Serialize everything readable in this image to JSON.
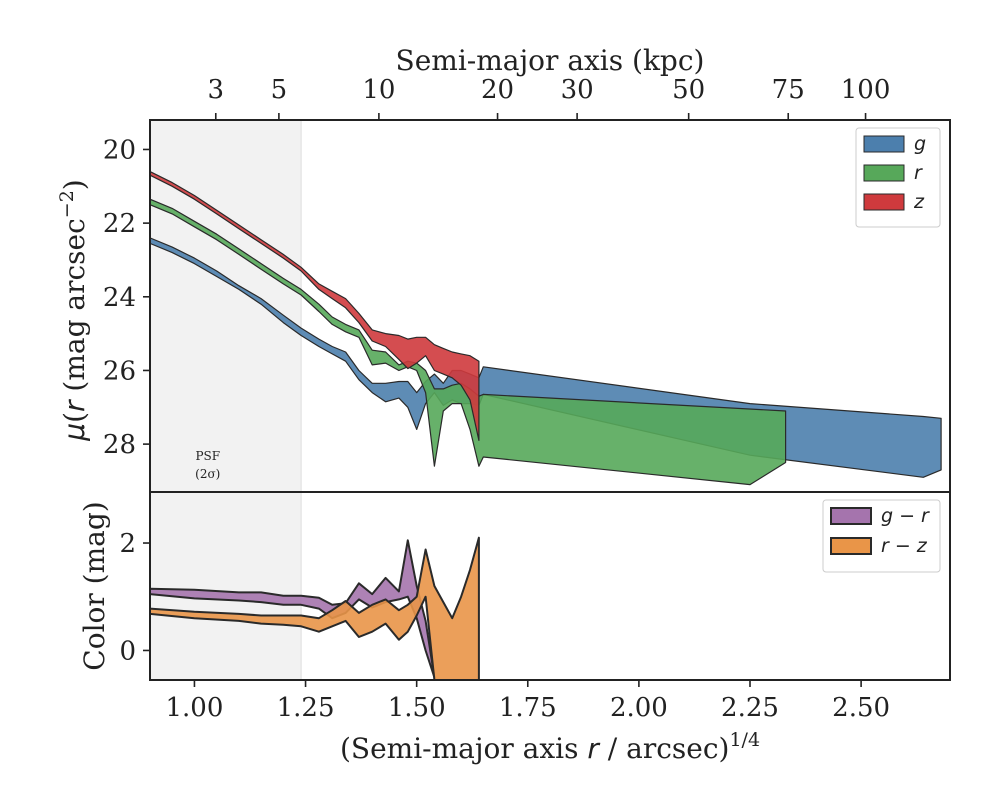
{
  "colors": {
    "g": "#4c7fad",
    "r": "#57a85a",
    "z": "#cf3a3d",
    "g_r": "#a574ad",
    "r_z": "#e99548",
    "psf_shade": "#f2f2f2",
    "axes": "#222222"
  },
  "chart_data": [
    {
      "type": "area",
      "panel": "profile",
      "xlabel_top": "Semi-major axis (kpc)",
      "top_ticks": [
        {
          "label": "3",
          "x": 1.048
        },
        {
          "label": "5",
          "x": 1.19
        },
        {
          "label": "10",
          "x": 1.415
        },
        {
          "label": "20",
          "x": 1.682
        },
        {
          "label": "30",
          "x": 1.861
        },
        {
          "label": "50",
          "x": 2.112
        },
        {
          "label": "75",
          "x": 2.336
        },
        {
          "label": "100",
          "x": 2.51
        }
      ],
      "ylabel": "μ(r) (mag arcsec⁻²)",
      "ylabel_parts": {
        "mu": "μ",
        "r": "r",
        "rest": " (mag arcsec",
        "sup": "−2",
        "close": ")"
      },
      "xlim": [
        0.9,
        2.7
      ],
      "ylim": [
        29.3,
        19.2
      ],
      "y_inverted": true,
      "yticks": [
        "20",
        "22",
        "24",
        "26",
        "28"
      ],
      "ytick_values": [
        20,
        22,
        24,
        26,
        28
      ],
      "psf_region": [
        0.9,
        1.24
      ],
      "psf_label": {
        "line1": "PSF",
        "line2": "(2σ)",
        "x": 1.03,
        "y": 28.6
      },
      "legend": {
        "position": "top-right",
        "entries": [
          {
            "label": "g",
            "color_key": "g"
          },
          {
            "label": "r",
            "color_key": "r"
          },
          {
            "label": "z",
            "color_key": "z"
          }
        ]
      },
      "series": [
        {
          "name": "g",
          "color_key": "g",
          "upper": [
            [
              0.9,
              22.4
            ],
            [
              0.95,
              22.65
            ],
            [
              1.0,
              22.95
            ],
            [
              1.05,
              23.3
            ],
            [
              1.1,
              23.7
            ],
            [
              1.15,
              24.05
            ],
            [
              1.2,
              24.5
            ],
            [
              1.24,
              24.85
            ],
            [
              1.28,
              25.15
            ],
            [
              1.31,
              25.35
            ],
            [
              1.34,
              25.5
            ],
            [
              1.37,
              26.0
            ],
            [
              1.4,
              26.35
            ],
            [
              1.43,
              26.35
            ],
            [
              1.46,
              26.3
            ],
            [
              1.48,
              26.3
            ],
            [
              1.5,
              26.6
            ],
            [
              1.52,
              26.3
            ],
            [
              1.54,
              26.1
            ],
            [
              1.56,
              26.35
            ],
            [
              1.58,
              26.0
            ],
            [
              1.6,
              26.0
            ],
            [
              1.62,
              26.1
            ],
            [
              1.64,
              26.2
            ],
            [
              1.65,
              25.9
            ],
            [
              2.25,
              26.9
            ],
            [
              2.64,
              27.25
            ],
            [
              2.68,
              27.3
            ]
          ],
          "lower": [
            [
              0.9,
              22.55
            ],
            [
              0.95,
              22.8
            ],
            [
              1.0,
              23.1
            ],
            [
              1.05,
              23.45
            ],
            [
              1.1,
              23.8
            ],
            [
              1.15,
              24.2
            ],
            [
              1.2,
              24.7
            ],
            [
              1.24,
              25.05
            ],
            [
              1.28,
              25.35
            ],
            [
              1.31,
              25.55
            ],
            [
              1.34,
              25.75
            ],
            [
              1.37,
              26.25
            ],
            [
              1.4,
              26.6
            ],
            [
              1.43,
              26.85
            ],
            [
              1.46,
              26.75
            ],
            [
              1.48,
              27.0
            ],
            [
              1.5,
              27.6
            ],
            [
              1.52,
              26.9
            ],
            [
              1.54,
              26.6
            ],
            [
              1.56,
              26.95
            ],
            [
              1.58,
              26.8
            ],
            [
              1.6,
              26.9
            ],
            [
              1.62,
              26.9
            ],
            [
              1.64,
              26.95
            ],
            [
              1.65,
              26.65
            ],
            [
              2.25,
              28.3
            ],
            [
              2.64,
              28.9
            ],
            [
              2.68,
              28.7
            ]
          ]
        },
        {
          "name": "r",
          "color_key": "r",
          "upper": [
            [
              0.9,
              21.35
            ],
            [
              0.95,
              21.6
            ],
            [
              1.0,
              21.95
            ],
            [
              1.05,
              22.3
            ],
            [
              1.1,
              22.7
            ],
            [
              1.15,
              23.1
            ],
            [
              1.2,
              23.5
            ],
            [
              1.24,
              23.8
            ],
            [
              1.28,
              24.2
            ],
            [
              1.31,
              24.55
            ],
            [
              1.34,
              24.75
            ],
            [
              1.37,
              24.9
            ],
            [
              1.4,
              25.45
            ],
            [
              1.43,
              25.5
            ],
            [
              1.46,
              25.85
            ],
            [
              1.48,
              25.75
            ],
            [
              1.5,
              25.8
            ],
            [
              1.52,
              26.0
            ],
            [
              1.54,
              26.5
            ],
            [
              1.56,
              26.5
            ],
            [
              1.58,
              26.4
            ],
            [
              1.6,
              26.35
            ],
            [
              1.62,
              26.5
            ],
            [
              1.64,
              26.7
            ],
            [
              1.65,
              26.65
            ],
            [
              2.33,
              27.1
            ]
          ],
          "lower": [
            [
              0.9,
              21.5
            ],
            [
              0.95,
              21.75
            ],
            [
              1.0,
              22.1
            ],
            [
              1.05,
              22.45
            ],
            [
              1.1,
              22.85
            ],
            [
              1.15,
              23.25
            ],
            [
              1.2,
              23.65
            ],
            [
              1.24,
              23.95
            ],
            [
              1.28,
              24.4
            ],
            [
              1.31,
              24.75
            ],
            [
              1.34,
              24.95
            ],
            [
              1.37,
              25.1
            ],
            [
              1.4,
              25.85
            ],
            [
              1.43,
              25.8
            ],
            [
              1.46,
              26.0
            ],
            [
              1.48,
              25.9
            ],
            [
              1.5,
              26.0
            ],
            [
              1.52,
              26.6
            ],
            [
              1.54,
              28.6
            ],
            [
              1.56,
              27.1
            ],
            [
              1.58,
              26.9
            ],
            [
              1.6,
              26.9
            ],
            [
              1.62,
              27.6
            ],
            [
              1.64,
              28.6
            ],
            [
              1.65,
              28.35
            ],
            [
              2.25,
              29.1
            ],
            [
              2.33,
              28.5
            ]
          ]
        },
        {
          "name": "z",
          "color_key": "z",
          "upper": [
            [
              0.9,
              20.6
            ],
            [
              0.95,
              20.9
            ],
            [
              1.0,
              21.25
            ],
            [
              1.05,
              21.65
            ],
            [
              1.1,
              22.05
            ],
            [
              1.15,
              22.45
            ],
            [
              1.2,
              22.85
            ],
            [
              1.24,
              23.2
            ],
            [
              1.28,
              23.65
            ],
            [
              1.31,
              23.85
            ],
            [
              1.34,
              24.05
            ],
            [
              1.37,
              24.45
            ],
            [
              1.4,
              24.9
            ],
            [
              1.43,
              25.0
            ],
            [
              1.46,
              25.05
            ],
            [
              1.48,
              25.15
            ],
            [
              1.5,
              25.1
            ],
            [
              1.52,
              25.1
            ],
            [
              1.54,
              25.3
            ],
            [
              1.56,
              25.4
            ],
            [
              1.58,
              25.5
            ],
            [
              1.6,
              25.55
            ],
            [
              1.62,
              25.6
            ],
            [
              1.64,
              25.75
            ]
          ],
          "lower": [
            [
              0.9,
              20.7
            ],
            [
              0.95,
              21.0
            ],
            [
              1.0,
              21.35
            ],
            [
              1.05,
              21.75
            ],
            [
              1.1,
              22.15
            ],
            [
              1.15,
              22.55
            ],
            [
              1.2,
              22.95
            ],
            [
              1.24,
              23.3
            ],
            [
              1.28,
              23.8
            ],
            [
              1.31,
              24.05
            ],
            [
              1.34,
              24.3
            ],
            [
              1.37,
              24.7
            ],
            [
              1.4,
              25.2
            ],
            [
              1.43,
              25.35
            ],
            [
              1.46,
              25.7
            ],
            [
              1.48,
              25.95
            ],
            [
              1.5,
              25.8
            ],
            [
              1.52,
              25.6
            ],
            [
              1.54,
              26.0
            ],
            [
              1.56,
              26.1
            ],
            [
              1.58,
              26.2
            ],
            [
              1.6,
              26.4
            ],
            [
              1.62,
              26.8
            ],
            [
              1.64,
              27.9
            ]
          ]
        }
      ]
    },
    {
      "type": "area",
      "panel": "color",
      "xlabel": "(Semi-major axis r / arcsec)1/4",
      "xlabel_parts": {
        "pre": "(Semi-major axis ",
        "r": "r",
        "mid": " / arcsec)",
        "sup": "1/4"
      },
      "ylabel": "Color (mag)",
      "xlim": [
        0.9,
        2.7
      ],
      "ylim": [
        -0.55,
        2.95
      ],
      "xticks": [
        "1.00",
        "1.25",
        "1.50",
        "1.75",
        "2.00",
        "2.25",
        "2.50"
      ],
      "xtick_values": [
        1.0,
        1.25,
        1.5,
        1.75,
        2.0,
        2.25,
        2.5
      ],
      "yticks": [
        "0",
        "2"
      ],
      "ytick_values": [
        0,
        2
      ],
      "psf_region": [
        0.9,
        1.24
      ],
      "legend": {
        "position": "top-right",
        "entries": [
          {
            "label": "g − r",
            "color_key": "g_r"
          },
          {
            "label": "r − z",
            "color_key": "r_z"
          }
        ]
      },
      "series": [
        {
          "name": "g − r",
          "color_key": "g_r",
          "upper": [
            [
              0.9,
              1.15
            ],
            [
              1.0,
              1.13
            ],
            [
              1.1,
              1.08
            ],
            [
              1.15,
              1.08
            ],
            [
              1.2,
              1.02
            ],
            [
              1.24,
              1.02
            ],
            [
              1.28,
              0.98
            ],
            [
              1.31,
              0.85
            ],
            [
              1.34,
              0.88
            ],
            [
              1.37,
              1.25
            ],
            [
              1.4,
              1.05
            ],
            [
              1.43,
              1.35
            ],
            [
              1.46,
              1.1
            ],
            [
              1.48,
              2.05
            ],
            [
              1.5,
              1.2
            ],
            [
              1.52,
              0.55
            ],
            [
              1.54,
              -0.5
            ]
          ],
          "lower": [
            [
              0.9,
              1.05
            ],
            [
              1.0,
              0.97
            ],
            [
              1.1,
              0.93
            ],
            [
              1.15,
              0.9
            ],
            [
              1.2,
              0.85
            ],
            [
              1.24,
              0.85
            ],
            [
              1.28,
              0.78
            ],
            [
              1.31,
              0.6
            ],
            [
              1.34,
              0.7
            ],
            [
              1.37,
              0.95
            ],
            [
              1.4,
              0.8
            ],
            [
              1.43,
              0.9
            ],
            [
              1.46,
              0.95
            ],
            [
              1.48,
              1.0
            ],
            [
              1.5,
              0.6
            ],
            [
              1.52,
              0.0
            ],
            [
              1.54,
              -0.5
            ]
          ]
        },
        {
          "name": "r − z",
          "color_key": "r_z",
          "upper": [
            [
              0.9,
              0.78
            ],
            [
              1.0,
              0.72
            ],
            [
              1.1,
              0.68
            ],
            [
              1.15,
              0.65
            ],
            [
              1.2,
              0.65
            ],
            [
              1.24,
              0.65
            ],
            [
              1.28,
              0.6
            ],
            [
              1.31,
              0.75
            ],
            [
              1.34,
              0.92
            ],
            [
              1.37,
              0.7
            ],
            [
              1.4,
              0.85
            ],
            [
              1.43,
              0.95
            ],
            [
              1.46,
              0.75
            ],
            [
              1.48,
              0.85
            ],
            [
              1.5,
              1.0
            ],
            [
              1.52,
              1.88
            ],
            [
              1.54,
              1.2
            ],
            [
              1.56,
              0.9
            ],
            [
              1.58,
              0.6
            ],
            [
              1.6,
              1.0
            ],
            [
              1.62,
              1.5
            ],
            [
              1.64,
              2.1
            ]
          ],
          "lower": [
            [
              0.9,
              0.68
            ],
            [
              1.0,
              0.6
            ],
            [
              1.1,
              0.55
            ],
            [
              1.15,
              0.5
            ],
            [
              1.2,
              0.48
            ],
            [
              1.24,
              0.45
            ],
            [
              1.28,
              0.35
            ],
            [
              1.31,
              0.45
            ],
            [
              1.34,
              0.55
            ],
            [
              1.37,
              0.25
            ],
            [
              1.4,
              0.35
            ],
            [
              1.43,
              0.5
            ],
            [
              1.46,
              0.2
            ],
            [
              1.48,
              0.35
            ],
            [
              1.5,
              0.65
            ],
            [
              1.52,
              1.0
            ],
            [
              1.54,
              -0.55
            ],
            [
              1.64,
              -0.55
            ]
          ]
        }
      ]
    }
  ]
}
